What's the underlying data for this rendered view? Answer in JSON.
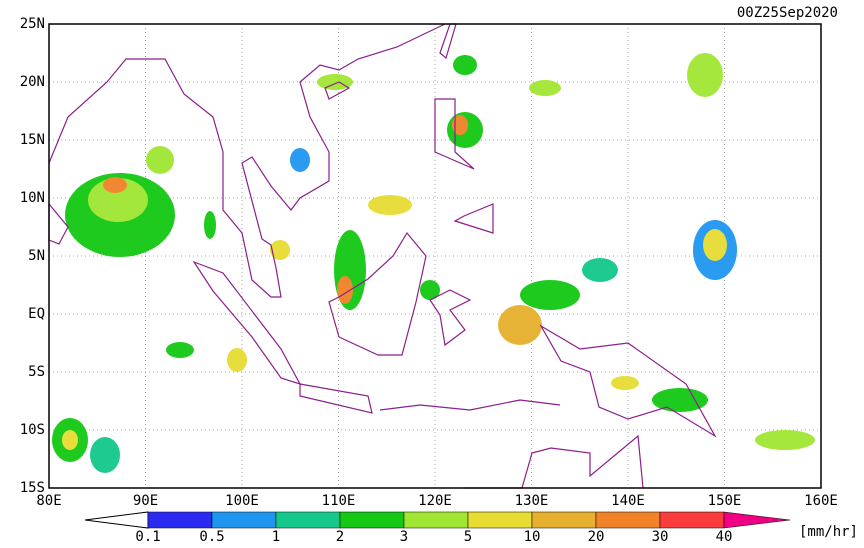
{
  "header": {
    "timestamp": "00Z25Sep2020"
  },
  "map": {
    "lat_labels": [
      "25N",
      "20N",
      "15N",
      "10N",
      "5N",
      "EQ",
      "5S",
      "10S",
      "15S"
    ],
    "lon_labels": [
      "80E",
      "90E",
      "100E",
      "110E",
      "120E",
      "130E",
      "140E",
      "150E",
      "160E"
    ]
  },
  "colorbar": {
    "labels": [
      0.1,
      0.5,
      1,
      2,
      3,
      5,
      10,
      20,
      30,
      40
    ],
    "colors": [
      "#2a2af0",
      "#1e96f0",
      "#14c88c",
      "#14c814",
      "#a0e632",
      "#e6dc32",
      "#e6af2d",
      "#f08228",
      "#fa3c3c",
      "#f00082"
    ],
    "unit": "[mm/hr]"
  }
}
